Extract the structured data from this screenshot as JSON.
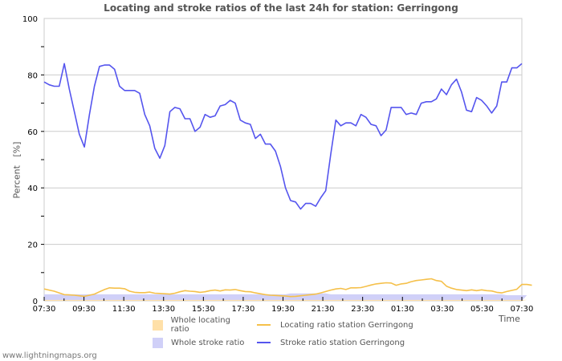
{
  "title": "Locating and stroke ratios of the last 24h for station: Gerringong",
  "footer": "www.lightningmaps.org",
  "axis": {
    "ylabel": "Percent   [%]",
    "xlabel": "Time",
    "yticks": [
      "0",
      "20",
      "40",
      "60",
      "80",
      "100"
    ],
    "xticks": [
      "07:30",
      "09:30",
      "11:30",
      "13:30",
      "15:30",
      "17:30",
      "19:30",
      "21:30",
      "23:30",
      "01:30",
      "03:30",
      "05:30",
      "07:30"
    ]
  },
  "legend": {
    "whole_locating": "Whole locating ratio",
    "station_locating": "Locating ratio station Gerringong",
    "whole_stroke": "Whole stroke ratio",
    "station_stroke": "Stroke ratio station Gerringong"
  },
  "colors": {
    "whole_locating": "#ffe0a8",
    "station_locating": "#f5c04a",
    "whole_stroke": "#d0d0f8",
    "station_stroke": "#5555ee",
    "grid": "#cccccc"
  },
  "chart_data": {
    "type": "line",
    "title": "Locating and stroke ratios of the last 24h for station: Gerringong",
    "xlabel": "Time",
    "ylabel": "Percent [%]",
    "ylim": [
      0,
      100
    ],
    "grid": true,
    "legend_position": "bottom",
    "x_range": [
      "07:30",
      "07:30 (+24h)"
    ],
    "x_step_minutes": 15,
    "categories": [
      "07:30",
      "09:30",
      "11:30",
      "13:30",
      "15:30",
      "17:30",
      "19:30",
      "21:30",
      "23:30",
      "01:30",
      "03:30",
      "05:30",
      "07:30"
    ],
    "series": [
      {
        "name": "Stroke ratio station Gerringong",
        "type": "line",
        "values": [
          77.5,
          76.5,
          76,
          76,
          84,
          75,
          67,
          59,
          54.5,
          66,
          76,
          83,
          83.5,
          83.5,
          82,
          76,
          74.5,
          74.5,
          74.5,
          73.5,
          66,
          62,
          54,
          50.5,
          55,
          67,
          68.5,
          68,
          64.5,
          64.5,
          60,
          61.5,
          66,
          65,
          65.5,
          69,
          69.5,
          71,
          70,
          64,
          63,
          62.5,
          57.5,
          59,
          55.5,
          55.5,
          53,
          47.5,
          40,
          35.5,
          35,
          32.5,
          34.5,
          34.5,
          33.5,
          36.5,
          39,
          52,
          64,
          62,
          63,
          63,
          62,
          66,
          65,
          62.5,
          62,
          58.5,
          60.5,
          68.5,
          68.5,
          68.5,
          66,
          66.5,
          66,
          70,
          70.5,
          70.5,
          71.5,
          75,
          73,
          76.5,
          78.5,
          74,
          67.5,
          67,
          72,
          71,
          69,
          66.5,
          69,
          77.5,
          77.5,
          82.5,
          82.5,
          84
        ]
      },
      {
        "name": "Locating ratio station Gerringong",
        "type": "line",
        "values": [
          4.2,
          3.8,
          3.4,
          2.8,
          2.2,
          2.1,
          2.0,
          1.8,
          1.6,
          2.0,
          2.4,
          3.2,
          4.0,
          4.6,
          4.5,
          4.5,
          4.3,
          3.4,
          3.0,
          2.9,
          2.9,
          3.1,
          2.7,
          2.6,
          2.5,
          2.4,
          2.7,
          3.2,
          3.6,
          3.4,
          3.3,
          3.0,
          3.2,
          3.6,
          3.8,
          3.5,
          3.9,
          3.8,
          4.0,
          3.6,
          3.3,
          3.2,
          2.8,
          2.5,
          2.2,
          2.0,
          1.9,
          1.8,
          1.7,
          1.5,
          1.6,
          1.8,
          2.0,
          2.2,
          2.4,
          2.8,
          3.3,
          3.8,
          4.2,
          4.4,
          4.0,
          4.6,
          4.6,
          4.7,
          5.1,
          5.6,
          6.0,
          6.2,
          6.4,
          6.3,
          5.5,
          6.0,
          6.2,
          6.8,
          7.2,
          7.4,
          7.6,
          7.8,
          7.2,
          6.9,
          5.2,
          4.5,
          4.0,
          3.8,
          3.6,
          3.9,
          3.6,
          3.9,
          3.6,
          3.5,
          3.0,
          2.8,
          3.3,
          3.7,
          4.1,
          5.8,
          5.8,
          5.5
        ]
      },
      {
        "name": "Whole stroke ratio",
        "type": "area",
        "values": [
          2.3,
          2.3,
          2.3,
          2.3,
          2.3,
          2.3,
          2.3,
          2.3,
          2.3,
          2.3,
          2.3,
          2.3,
          2.3,
          2.3,
          2.3,
          2.3,
          2.3,
          2.3,
          2.3,
          2.3,
          2.3,
          2.3,
          2.3,
          2.3,
          2.3,
          2.3,
          2.3,
          2.3,
          2.3,
          2.3,
          2.3,
          2.3,
          2.3,
          2.3,
          2.3,
          2.3,
          2.3,
          2.3,
          2.3,
          2.3,
          2.3,
          2.3,
          2.3,
          2.3,
          2.3,
          2.3,
          2.3,
          2.3,
          2.3,
          2.6,
          2.6,
          2.6,
          2.6,
          2.6,
          2.6,
          2.6,
          2.6,
          2.3,
          2.3,
          2.3,
          2.3,
          2.3,
          2.3,
          2.3,
          2.3,
          2.3,
          2.3,
          2.3,
          2.3,
          2.3,
          2.3,
          2.3,
          2.3,
          2.3,
          2.3,
          2.3,
          2.3,
          2.3,
          2.3,
          2.3,
          2.3,
          2.3,
          2.3,
          2.3,
          2.3,
          2.3,
          2.3,
          2.3,
          2.3,
          2.3,
          2.3,
          2.3,
          2.0,
          2.0,
          2.0,
          2.0,
          2.0
        ]
      },
      {
        "name": "Whole locating ratio",
        "type": "area",
        "values": [
          0.3,
          0.3,
          0.3,
          0.3,
          0.3,
          0.3,
          0.3,
          0.3,
          0.3,
          0.3,
          0.3,
          0.3,
          0.3,
          0.3,
          0.3,
          0.3,
          0.3,
          0.3,
          0.3,
          0.3,
          0.3,
          0.3,
          0.3,
          0.3,
          0.3,
          0.3,
          0.3,
          0.3,
          0.3,
          0.3,
          0.3,
          0.3,
          0.3,
          0.3,
          0.3,
          0.3,
          0.3,
          0.3,
          0.3,
          0.3,
          0.3,
          0.3,
          0.3,
          0.3,
          0.3,
          0.3,
          0.3,
          0.3,
          0.3,
          0.3,
          0.3,
          0.3,
          0.3,
          0.3,
          0.3,
          0.3,
          0.3,
          0.3,
          0.3,
          0.3,
          0.3,
          0.3,
          0.3,
          0.3,
          0.3,
          0.3,
          0.3,
          0.3,
          0.3,
          0.3,
          0.3,
          0.3,
          0.3,
          0.3,
          0.3,
          0.3,
          0.3,
          0.3,
          0.3,
          0.3,
          0.3,
          0.3,
          0.3,
          0.3,
          0.3,
          0.3,
          0.3,
          0.3,
          0.3,
          0.3,
          0.3,
          0.3,
          0.3,
          0.3,
          0.3,
          0.3,
          0.3
        ]
      }
    ]
  }
}
